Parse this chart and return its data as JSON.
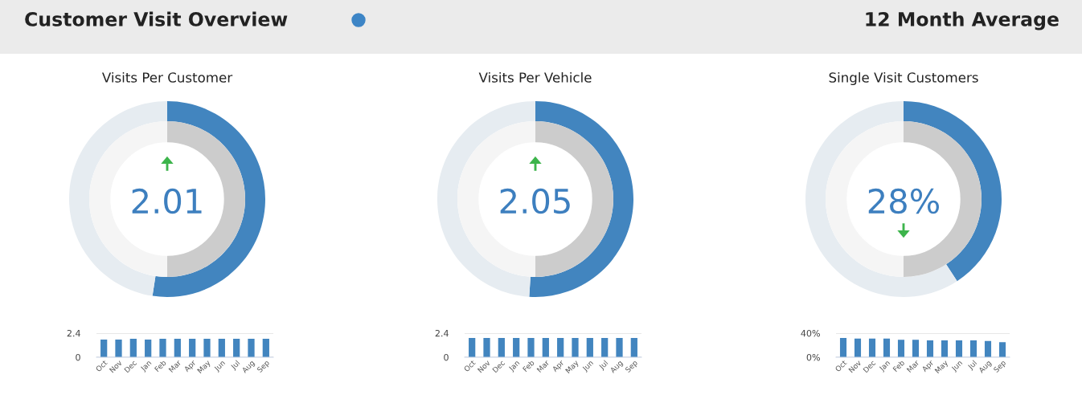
{
  "chart_data": [
    {
      "type": "other",
      "title": "Customer Visit Overview",
      "annotations": [
        "12 Month Average"
      ]
    },
    {
      "type": "donut",
      "title": "Visits Per Customer",
      "annotations": [
        "2.01"
      ],
      "series": [
        {
          "colors": [
            "#4285bf",
            "#e6ecf1"
          ],
          "values": [
            52.4,
            47.6
          ]
        },
        {
          "colors": [
            "#cccccc",
            "#f5f5f5"
          ],
          "values": [
            50,
            50
          ]
        }
      ]
    },
    {
      "type": "donut",
      "title": "Visits Per Vehicle",
      "annotations": [
        "2.05"
      ],
      "series": [
        {
          "colors": [
            "#4285bf",
            "#e6ecf1"
          ],
          "values": [
            51,
            49
          ]
        },
        {
          "colors": [
            "#cccccc",
            "#f5f5f5"
          ],
          "values": [
            50,
            50
          ]
        }
      ]
    },
    {
      "type": "donut",
      "title": "Single Visit Customers",
      "annotations": [
        "28%"
      ],
      "series": [
        {
          "colors": [
            "#4285bf",
            "#e6ecf1"
          ],
          "values": [
            40.8,
            59.2
          ]
        },
        {
          "colors": [
            "#cccccc",
            "#f5f5f5"
          ],
          "values": [
            50,
            50
          ]
        }
      ]
    },
    {
      "type": "bar",
      "categories": [
        "Oct",
        "Nov",
        "Dec",
        "Jan",
        "Feb",
        "Mar",
        "Apr",
        "May",
        "Jun",
        "Jul",
        "Aug",
        "Sep"
      ],
      "values": [
        1.76,
        1.76,
        1.84,
        1.76,
        1.84,
        1.84,
        1.84,
        1.84,
        1.84,
        1.84,
        1.84,
        1.84
      ],
      "color": "#4285bf",
      "ylim": [
        0,
        2.4
      ],
      "yticks": [
        0,
        2.4
      ],
      "grid": "y"
    },
    {
      "type": "bar",
      "categories": [
        "Oct",
        "Nov",
        "Dec",
        "Jan",
        "Feb",
        "Mar",
        "Apr",
        "May",
        "Jun",
        "Jul",
        "Aug",
        "Sep"
      ],
      "values": [
        1.92,
        1.92,
        1.92,
        1.92,
        1.92,
        1.92,
        1.92,
        1.92,
        1.92,
        1.92,
        1.92,
        1.92
      ],
      "color": "#4285bf",
      "ylim": [
        0,
        2.4
      ],
      "yticks": [
        0,
        2.4
      ],
      "grid": "y"
    },
    {
      "type": "bar",
      "categories": [
        "Oct",
        "Nov",
        "Dec",
        "Jan",
        "Feb",
        "Mar",
        "Apr",
        "May",
        "Jun",
        "Jul",
        "Aug",
        "Sep"
      ],
      "values": [
        32,
        31,
        31,
        31,
        29,
        29,
        28,
        28,
        28,
        28,
        27,
        25
      ],
      "color": "#4285bf",
      "ylim": [
        0,
        40
      ],
      "yticks": [
        {
          "value": 0,
          "label": "0%"
        },
        {
          "value": 40,
          "label": "40%"
        }
      ],
      "grid": "y"
    }
  ]
}
